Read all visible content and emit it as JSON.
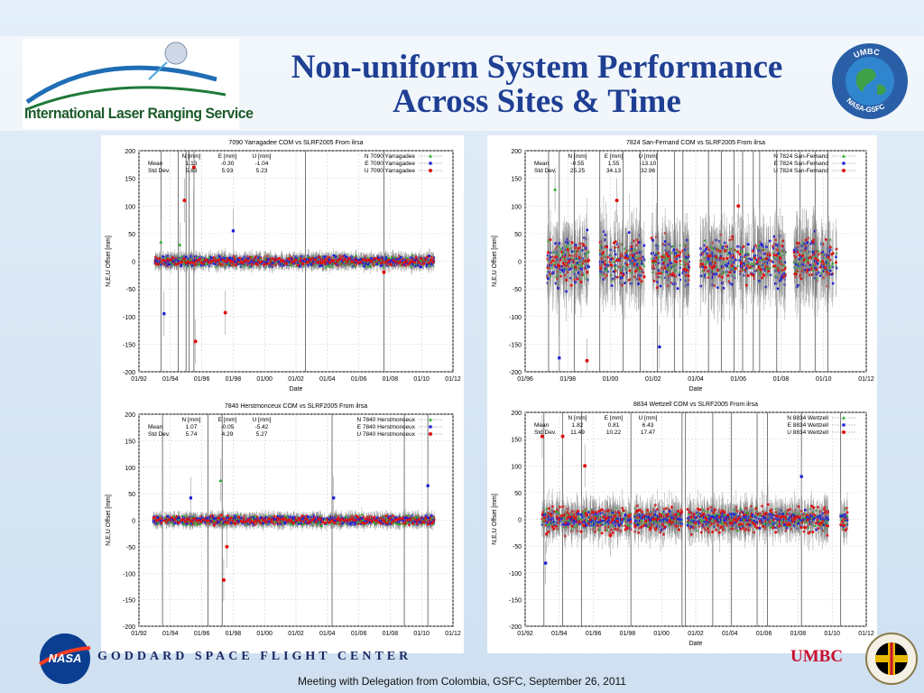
{
  "slide": {
    "title_line1": "Non-uniform System Performance",
    "title_line2": "Across Sites & Time",
    "logo_text": "International Laser Ranging Service",
    "globe_top_text": "UMBC",
    "globe_bottom_text": "NASA-GSFC",
    "footer_center": "GODDARD SPACE FLIGHT CENTER",
    "footer_umbc": "UMBC",
    "caption": "Meeting with Delegation from Colombia, GSFC, September 26, 2011",
    "colors": {
      "title": "#1f3f93",
      "n_series": "#22aa22",
      "e_series": "#1a1adb",
      "u_series": "#e01010",
      "errorbar": "#8a8a8a"
    }
  },
  "chart_data": [
    {
      "type": "scatter",
      "title": "7090 Yarragadee COM vs SLRF2005 From ilrsa",
      "xlabel": "Date",
      "ylabel": "N,E,U Offset [mm]",
      "ylim": [
        -200,
        200
      ],
      "xlim": [
        1992.0,
        2012.0
      ],
      "xticks": [
        "01/92",
        "01/94",
        "01/96",
        "01/98",
        "01/00",
        "01/02",
        "01/04",
        "01/06",
        "01/08",
        "01/10",
        "01/12"
      ],
      "yticks": [
        "200",
        "150",
        "100",
        "50",
        "0",
        "-50",
        "-100",
        "-150",
        "-200"
      ],
      "stats": {
        "headers": [
          "N [mm]",
          "E [mm]",
          "U [mm]"
        ],
        "rows": [
          {
            "label": "Mean",
            "values": [
              "1.13",
              "-0.30",
              "-1.04"
            ]
          },
          {
            "label": "Std Dev.",
            "values": [
              "5.83",
              "5.93",
              "5.23"
            ]
          }
        ]
      },
      "legend": [
        "N 7090 Yarragadee",
        "E 7090 Yarragadee",
        "U 7090 Yarragadee"
      ],
      "legend_position": "top-right",
      "grid": true,
      "segments": [
        [
          1993.0,
          2010.8
        ]
      ],
      "spread": {
        "N": 6,
        "E": 6,
        "U": 5
      },
      "outliers": [
        [
          1994.9,
          110,
          "U"
        ],
        [
          1995.6,
          -145,
          "U"
        ],
        [
          1997.5,
          -93,
          "U"
        ],
        [
          1998.0,
          55,
          "E"
        ],
        [
          1993.6,
          -95,
          "E"
        ],
        [
          1995.5,
          170,
          "U"
        ],
        [
          2007.6,
          -20,
          "U"
        ],
        [
          1993.4,
          35,
          "N"
        ],
        [
          1994.6,
          30,
          "N"
        ]
      ],
      "spikes": [
        1993.4,
        1994.5,
        1995.0,
        1995.2,
        1995.5,
        2002.6,
        2007.6
      ]
    },
    {
      "type": "scatter",
      "title": "7824 San-Fernand COM vs SLRF2005 From ilrsa",
      "xlabel": "Date",
      "ylabel": "N,E,U Offset [mm]",
      "ylim": [
        -200,
        200
      ],
      "xlim": [
        1996.0,
        2012.0
      ],
      "xticks": [
        "01/96",
        "01/98",
        "01/00",
        "01/02",
        "01/04",
        "01/06",
        "01/08",
        "01/10",
        "01/12"
      ],
      "yticks": [
        "200",
        "150",
        "100",
        "50",
        "0",
        "-50",
        "-100",
        "-150",
        "-200"
      ],
      "stats": {
        "headers": [
          "N [mm]",
          "E [mm]",
          "U [mm]"
        ],
        "rows": [
          {
            "label": "Mean",
            "values": [
              "-0.55",
              "1.55",
              "-13.10"
            ]
          },
          {
            "label": "Std Dev.",
            "values": [
              "25.25",
              "34.13",
              "32.96"
            ]
          }
        ]
      },
      "legend": [
        "N 7824 San-Fernand",
        "E 7824 San-Fernand",
        "U 7824 San-Fernand"
      ],
      "legend_position": "top-right",
      "grid": true,
      "segments": [
        [
          1997.0,
          1999.0
        ],
        [
          1999.5,
          2001.6
        ],
        [
          2001.9,
          2003.7
        ],
        [
          2004.2,
          2008.2
        ],
        [
          2008.6,
          2010.6
        ]
      ],
      "spread": {
        "N": 20,
        "E": 30,
        "U": 28
      },
      "outliers": [
        [
          1997.6,
          -175,
          "E"
        ],
        [
          1998.9,
          -180,
          "U"
        ],
        [
          2000.3,
          110,
          "U"
        ],
        [
          2002.3,
          -155,
          "E"
        ],
        [
          2006.0,
          100,
          "U"
        ],
        [
          1997.4,
          130,
          "N"
        ]
      ],
      "spikes": [
        1997.1,
        1997.6,
        1998.3,
        1999.5,
        2000.6,
        2001.4,
        2002.2,
        2003.0,
        2003.4,
        2004.6,
        2005.2,
        2005.8,
        2006.2,
        2006.7,
        2007.0,
        2007.8,
        2008.9,
        2009.6,
        2010.2
      ]
    },
    {
      "type": "scatter",
      "title": "7840 Herstmonceux COM vs SLRF2005 From ilrsa",
      "xlabel": "",
      "ylabel": "N,E,U Offset [mm]",
      "ylim": [
        -200,
        200
      ],
      "xlim": [
        1992.0,
        2012.0
      ],
      "xticks": [
        "01/92",
        "01/94",
        "01/96",
        "01/98",
        "01/00",
        "01/02",
        "01/04",
        "01/06",
        "01/08",
        "01/10",
        "01/12"
      ],
      "yticks": [
        "200",
        "150",
        "100",
        "50",
        "0",
        "-50",
        "-100",
        "-150",
        "-200"
      ],
      "stats": {
        "headers": [
          "N [mm]",
          "E [mm]",
          "U [mm]"
        ],
        "rows": [
          {
            "label": "Mean",
            "values": [
              "1.07",
              "-0.05",
              "-5.42"
            ]
          },
          {
            "label": "Std Dev.",
            "values": [
              "5.74",
              "4.29",
              "5.27"
            ]
          }
        ]
      },
      "legend": [
        "N 7840 Herstmonceux",
        "E 7840 Herstmonceux",
        "U 7840 Herstmonceux"
      ],
      "legend_position": "top-right",
      "grid": true,
      "segments": [
        [
          1992.9,
          2010.8
        ]
      ],
      "spread": {
        "N": 6,
        "E": 5,
        "U": 5
      },
      "outliers": [
        [
          1997.4,
          -113,
          "U"
        ],
        [
          1997.2,
          75,
          "N"
        ],
        [
          2004.4,
          42,
          "E"
        ],
        [
          1995.3,
          42,
          "E"
        ],
        [
          2010.4,
          65,
          "E"
        ],
        [
          1997.6,
          -50,
          "U"
        ]
      ],
      "spikes": [
        1993.5,
        1996.4,
        1997.3,
        2004.3,
        2008.9,
        2010.4
      ]
    },
    {
      "type": "scatter",
      "title": "8834 Wettzell COM vs SLRF2005 From ilrsa",
      "xlabel": "Date",
      "ylabel": "N,E,U Offset [mm]",
      "ylim": [
        -200,
        200
      ],
      "xlim": [
        1992.0,
        2012.0
      ],
      "xticks": [
        "01/92",
        "01/94",
        "01/96",
        "01/98",
        "01/00",
        "01/02",
        "01/04",
        "01/06",
        "01/08",
        "01/10",
        "01/12"
      ],
      "yticks": [
        "200",
        "150",
        "100",
        "50",
        "0",
        "-50",
        "-100",
        "-150",
        "-200"
      ],
      "stats": {
        "headers": [
          "N [mm]",
          "E [mm]",
          "U [mm]"
        ],
        "rows": [
          {
            "label": "Mean",
            "values": [
              "1.82",
              "0.81",
              "6.43"
            ]
          },
          {
            "label": "Std Dev.",
            "values": [
              "11.49",
              "10.22",
              "17.47"
            ]
          }
        ]
      },
      "legend": [
        "N 8834 Wettzell",
        "E 8834 Wettzell",
        "U 8834 Wettzell"
      ],
      "legend_position": "top-right",
      "grid": true,
      "segments": [
        [
          1993.0,
          1998.2
        ],
        [
          1998.4,
          2001.2
        ],
        [
          2001.5,
          2009.9
        ],
        [
          2010.5,
          2010.9
        ]
      ],
      "spread": {
        "N": 12,
        "E": 10,
        "U": 16
      },
      "outliers": [
        [
          1993.0,
          155,
          "U"
        ],
        [
          1994.2,
          155,
          "U"
        ],
        [
          1993.2,
          -82,
          "E"
        ],
        [
          1997.0,
          -30,
          "U"
        ],
        [
          2008.2,
          80,
          "E"
        ],
        [
          1995.5,
          100,
          "U"
        ]
      ],
      "spikes": [
        1993.1,
        1994.2,
        1995.3,
        1998.2,
        2001.2,
        2001.4,
        2003.0,
        2004.1,
        2005.6,
        2006.2,
        2008.2,
        2010.5
      ]
    }
  ]
}
